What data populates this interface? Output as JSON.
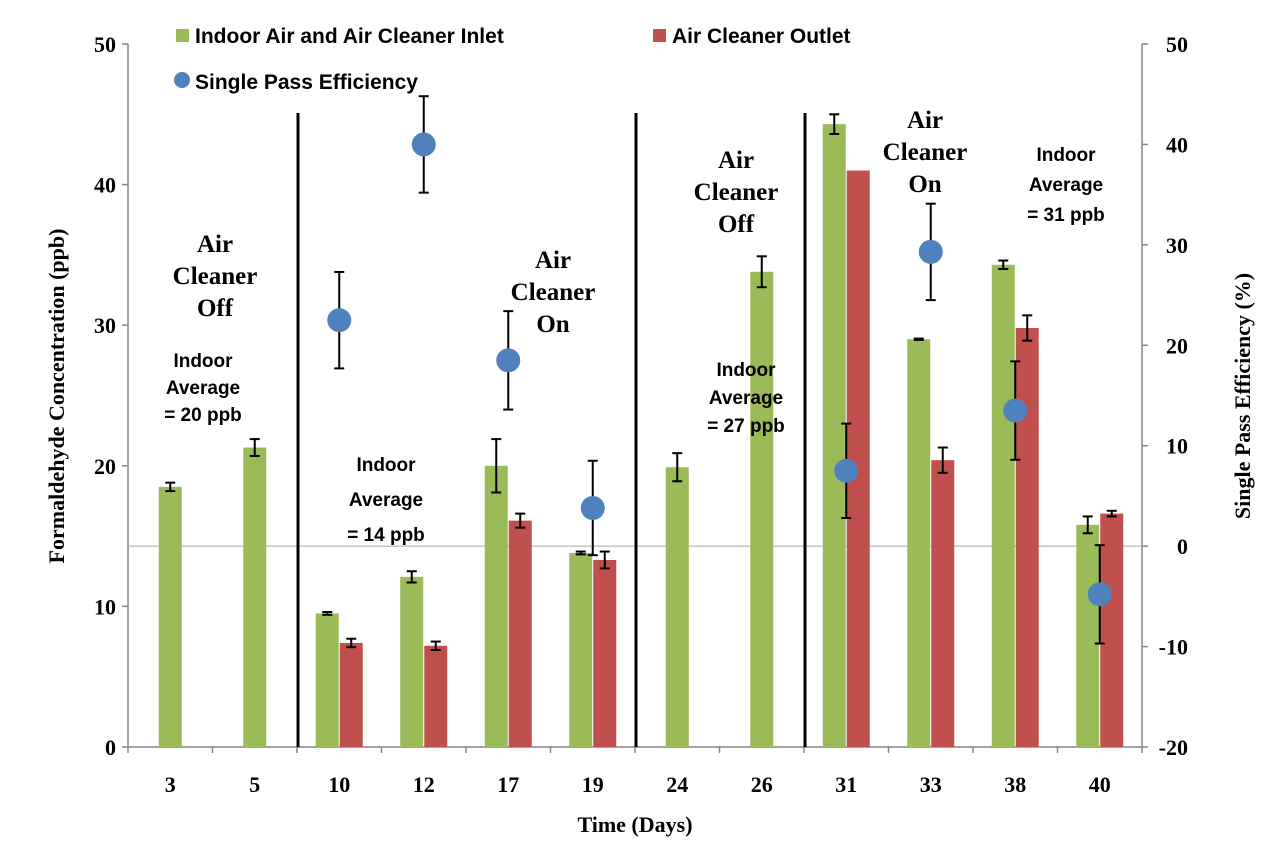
{
  "chart_data": {
    "type": "bar",
    "xlabel": "Time (Days)",
    "ylabel": "Formaldehyde Concentration (ppb)",
    "y2label": "Single Pass Efficiency (%)",
    "ylim": [
      0,
      50
    ],
    "y2lim": [
      -20,
      50
    ],
    "yticks": [
      "0",
      "10",
      "20",
      "30",
      "40",
      "50"
    ],
    "y2ticks": [
      "-20",
      "-10",
      "0",
      "10",
      "20",
      "30",
      "40",
      "50"
    ],
    "categories": [
      "3",
      "5",
      "10",
      "12",
      "17",
      "19",
      "24",
      "26",
      "31",
      "33",
      "38",
      "40"
    ],
    "series": [
      {
        "name": "Indoor Air and Air Cleaner Inlet",
        "kind": "bar",
        "axis": "left",
        "color": "#9bbb59",
        "values": [
          18.5,
          21.3,
          9.5,
          12.1,
          20.0,
          13.8,
          19.9,
          33.8,
          44.3,
          29.0,
          34.3,
          15.8
        ],
        "errors": [
          0.3,
          0.6,
          0.1,
          0.4,
          1.9,
          0.1,
          1.0,
          1.1,
          0.7,
          0.05,
          0.3,
          0.6
        ]
      },
      {
        "name": "Air Cleaner Outlet",
        "kind": "bar",
        "axis": "left",
        "color": "#c0504d",
        "values": [
          null,
          null,
          7.4,
          7.2,
          16.1,
          13.3,
          null,
          null,
          41.0,
          20.4,
          29.8,
          16.6
        ],
        "errors": [
          null,
          null,
          0.3,
          0.3,
          0.5,
          0.6,
          null,
          null,
          null,
          0.9,
          0.9,
          0.2
        ]
      },
      {
        "name": "Single Pass Efficiency",
        "kind": "scatter",
        "axis": "right",
        "color": "#4f81bd",
        "values": [
          null,
          null,
          22.5,
          40.0,
          18.5,
          3.8,
          null,
          null,
          7.5,
          29.3,
          13.5,
          -4.8
        ],
        "errors": [
          null,
          null,
          4.8,
          4.8,
          4.9,
          4.7,
          null,
          null,
          4.7,
          4.8,
          4.9,
          4.9
        ]
      }
    ],
    "phase_dividers_after": [
      "5",
      "19",
      "26"
    ],
    "annotations": [
      {
        "lines": [
          "Air",
          "Cleaner",
          "Off"
        ],
        "style": "serif-bold"
      },
      {
        "lines": [
          "Indoor",
          "Average",
          "= 20 ppb"
        ],
        "style": "sans-bold"
      },
      {
        "lines": [
          "Indoor",
          "Average",
          "= 14 ppb"
        ],
        "style": "sans-bold"
      },
      {
        "lines": [
          "Air",
          "Cleaner",
          "On"
        ],
        "style": "serif-bold"
      },
      {
        "lines": [
          "Air",
          "Cleaner",
          "Off"
        ],
        "style": "serif-bold"
      },
      {
        "lines": [
          "Indoor",
          "Average",
          "= 27 ppb"
        ],
        "style": "sans-bold"
      },
      {
        "lines": [
          "Air",
          "Cleaner",
          "On"
        ],
        "style": "serif-bold"
      },
      {
        "lines": [
          "Indoor",
          "Average",
          "= 31 ppb"
        ],
        "style": "sans-bold"
      }
    ],
    "grid": false,
    "legend_position": "top"
  }
}
